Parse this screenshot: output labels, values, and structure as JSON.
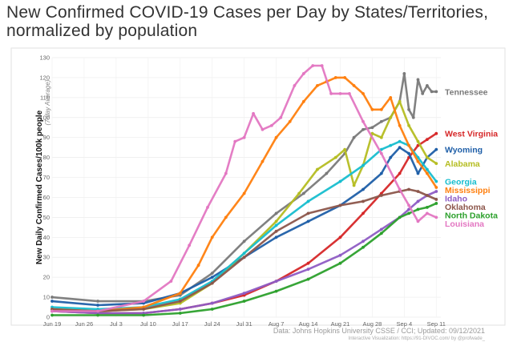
{
  "page": {
    "title": "New Confirmed COVID-19 Cases per Day by States/Territories, normalized by population"
  },
  "chart_data": {
    "type": "line",
    "title": "New Confirmed COVID-19 Cases per Day by States/Territories, normalized by population",
    "ylabel": "New Daily Confirmed Cases/100k people",
    "ylabel_sub": "(7-day Average)",
    "ylim": [
      0,
      130
    ],
    "yticks": [
      0,
      10,
      20,
      30,
      40,
      50,
      60,
      70,
      80,
      90,
      100,
      110,
      120,
      130
    ],
    "xlim": [
      0,
      85
    ],
    "x_tick_labels": [
      {
        "x": 0,
        "label": "Jun 19"
      },
      {
        "x": 7,
        "label": "Jun 26"
      },
      {
        "x": 14,
        "label": "Jul 3"
      },
      {
        "x": 21,
        "label": "Jul 10"
      },
      {
        "x": 28,
        "label": "Jul 17"
      },
      {
        "x": 35,
        "label": "Jul 24"
      },
      {
        "x": 42,
        "label": "Jul 31"
      },
      {
        "x": 49,
        "label": "Aug 7"
      },
      {
        "x": 56,
        "label": "Aug 14"
      },
      {
        "x": 63,
        "label": "Aug 21"
      },
      {
        "x": 70,
        "label": "Aug 28"
      },
      {
        "x": 77,
        "label": "Sep 4"
      },
      {
        "x": 84,
        "label": "Sep 11"
      }
    ],
    "x_unit": "days since Jun 19, 2021",
    "grid": true,
    "source": "Data: Johns Hopkins University CSSE / CCI; Updated: 09/12/2021",
    "credit": "Interactive Visualization: https://91-DIVOC.com/ by @profwade_",
    "series": [
      {
        "name": "Tennessee",
        "color": "#7a7a7a",
        "x": [
          0,
          10,
          20,
          28,
          35,
          42,
          49,
          55,
          60,
          64,
          66,
          68,
          70,
          72,
          74,
          76,
          77,
          78,
          79,
          80,
          81,
          82,
          83,
          84
        ],
        "y": [
          10,
          8,
          8,
          11,
          22,
          38,
          52,
          62,
          72,
          82,
          90,
          94,
          95,
          98,
          100,
          108,
          122,
          104,
          100,
          119,
          112,
          116,
          113,
          113
        ]
      },
      {
        "name": "West Virginia",
        "color": "#d62728",
        "x": [
          0,
          10,
          20,
          28,
          35,
          42,
          49,
          56,
          63,
          68,
          72,
          76,
          78,
          80,
          82,
          84
        ],
        "y": [
          3,
          2,
          2,
          4,
          7,
          11,
          18,
          27,
          40,
          52,
          62,
          72,
          80,
          86,
          89,
          92
        ]
      },
      {
        "name": "Wyoming",
        "color": "#1f5fa8",
        "x": [
          0,
          10,
          20,
          28,
          35,
          42,
          49,
          56,
          63,
          68,
          72,
          74,
          76,
          78,
          80,
          82,
          84
        ],
        "y": [
          8,
          6,
          7,
          12,
          20,
          30,
          40,
          48,
          56,
          64,
          72,
          80,
          85,
          82,
          72,
          80,
          84
        ]
      },
      {
        "name": "Alabama",
        "color": "#b5bd22",
        "x": [
          0,
          10,
          20,
          28,
          35,
          42,
          49,
          54,
          58,
          62,
          64,
          66,
          68,
          70,
          72,
          74,
          76,
          78,
          80,
          82,
          84
        ],
        "y": [
          4,
          3,
          4,
          7,
          17,
          32,
          48,
          62,
          74,
          80,
          84,
          66,
          76,
          92,
          90,
          100,
          108,
          96,
          88,
          80,
          77
        ]
      },
      {
        "name": "Georgia",
        "color": "#17becf",
        "x": [
          0,
          10,
          20,
          28,
          35,
          42,
          49,
          56,
          63,
          68,
          72,
          74,
          76,
          78,
          80,
          82,
          84
        ],
        "y": [
          5,
          4,
          5,
          9,
          18,
          32,
          46,
          58,
          68,
          76,
          84,
          86,
          88,
          86,
          80,
          74,
          68
        ]
      },
      {
        "name": "Mississippi",
        "color": "#ff7f0e",
        "x": [
          0,
          10,
          20,
          28,
          32,
          35,
          38,
          42,
          46,
          49,
          52,
          55,
          58,
          60,
          62,
          64,
          66,
          68,
          70,
          72,
          74,
          76,
          78,
          80,
          82,
          84
        ],
        "y": [
          4,
          3,
          5,
          12,
          26,
          40,
          50,
          62,
          78,
          90,
          98,
          108,
          116,
          118,
          120,
          120,
          116,
          112,
          104,
          104,
          110,
          96,
          86,
          78,
          72,
          65
        ]
      },
      {
        "name": "Idaho",
        "color": "#8e5cc4",
        "x": [
          0,
          10,
          20,
          28,
          35,
          42,
          49,
          56,
          63,
          68,
          72,
          76,
          78,
          80,
          82,
          84
        ],
        "y": [
          3,
          2,
          2,
          4,
          7,
          12,
          18,
          24,
          31,
          38,
          44,
          50,
          54,
          58,
          61,
          63
        ]
      },
      {
        "name": "Oklahoma",
        "color": "#8c564b",
        "x": [
          0,
          10,
          20,
          28,
          35,
          42,
          49,
          56,
          63,
          68,
          72,
          76,
          78,
          80,
          82,
          84
        ],
        "y": [
          4,
          3,
          4,
          8,
          17,
          30,
          43,
          52,
          56,
          58,
          61,
          63,
          64,
          63,
          61,
          59
        ]
      },
      {
        "name": "North Dakota",
        "color": "#2ca02c",
        "x": [
          0,
          10,
          20,
          28,
          35,
          42,
          49,
          56,
          63,
          68,
          72,
          76,
          78,
          80,
          82,
          84
        ],
        "y": [
          1,
          1,
          1,
          2,
          4,
          8,
          13,
          19,
          27,
          35,
          42,
          50,
          52,
          54,
          55,
          57
        ]
      },
      {
        "name": "Louisiana",
        "color": "#e377c2",
        "x": [
          0,
          10,
          20,
          26,
          30,
          34,
          38,
          40,
          42,
          44,
          46,
          48,
          50,
          53,
          55,
          57,
          59,
          61,
          63,
          65,
          68,
          72,
          76,
          78,
          80,
          82,
          84
        ],
        "y": [
          3,
          3,
          8,
          18,
          36,
          55,
          72,
          88,
          90,
          102,
          94,
          96,
          100,
          116,
          122,
          126,
          126,
          112,
          112,
          112,
          98,
          82,
          64,
          56,
          48,
          52,
          50
        ]
      }
    ],
    "labels_visible": [
      "Tennessee",
      "West Virginia",
      "Wyoming",
      "Alabama",
      "Georgia",
      "Mississippi",
      "Idaho",
      "Oklahoma",
      "North Dakota",
      "Louisiana"
    ]
  }
}
